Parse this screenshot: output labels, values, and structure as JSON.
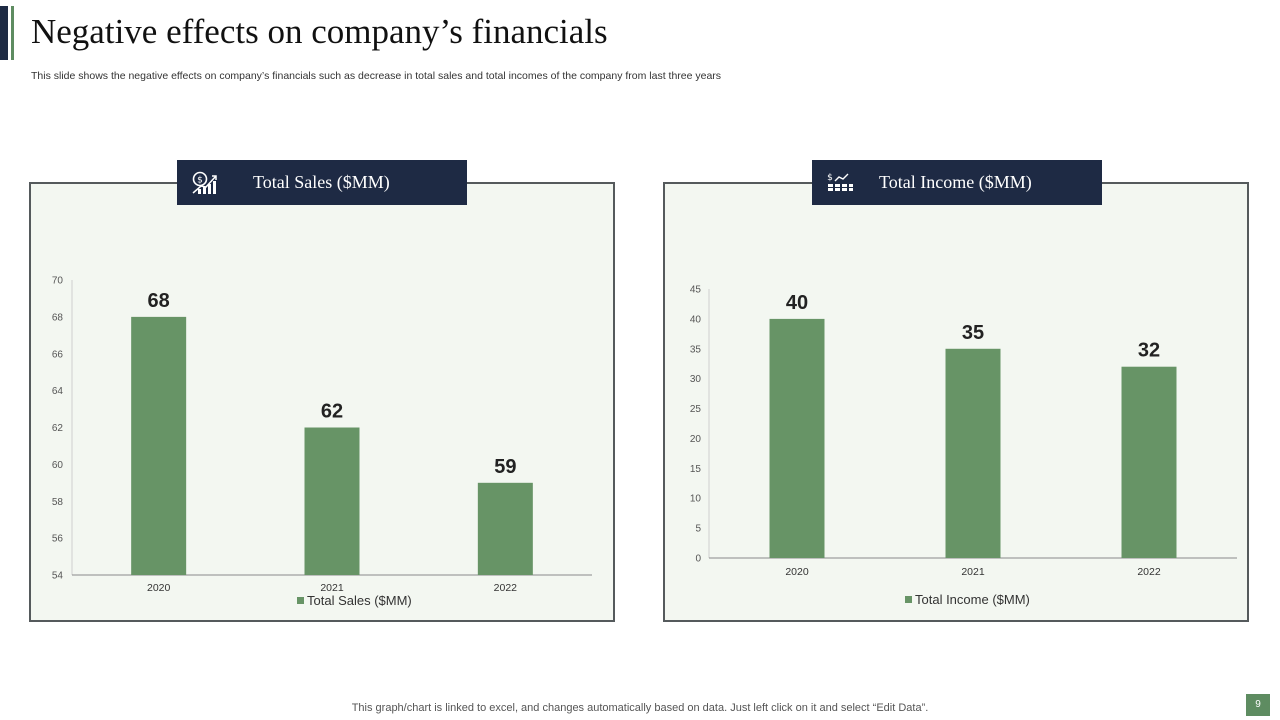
{
  "slide": {
    "title": "Negative effects on company’s financials",
    "subtitle": "This slide shows the negative effects on company’s financials such as decrease in total sales and total incomes of the company from last three years",
    "footer": "This graph/chart is linked to excel,  and changes automatically based on data. Just left click on it and select “Edit Data”.",
    "page_number": "9"
  },
  "panels": {
    "left": {
      "header": "Total Sales ($MM)",
      "icon": "sales-growth-icon"
    },
    "right": {
      "header": "Total Income ($MM)",
      "icon": "income-growth-icon"
    }
  },
  "colors": {
    "bar": "#679466",
    "navy": "#1e2a44",
    "panel_bg": "#f3f7f1"
  },
  "chart_data": [
    {
      "type": "bar",
      "title": "Total Sales ($MM)",
      "categories": [
        "2020",
        "2021",
        "2022"
      ],
      "series": [
        {
          "name": "Total Sales ($MM)",
          "values": [
            68,
            62,
            59
          ]
        }
      ],
      "ylim": [
        54,
        70
      ],
      "yticks": [
        54,
        56,
        58,
        60,
        62,
        64,
        66,
        68,
        70
      ],
      "legend": "bottom",
      "grid": false
    },
    {
      "type": "bar",
      "title": "Total Income ($MM)",
      "categories": [
        "2020",
        "2021",
        "2022"
      ],
      "series": [
        {
          "name": "Total Income ($MM)",
          "values": [
            40,
            35,
            32
          ]
        }
      ],
      "ylim": [
        0,
        45
      ],
      "yticks": [
        0,
        5,
        10,
        15,
        20,
        25,
        30,
        35,
        40,
        45
      ],
      "legend": "bottom",
      "grid": false
    }
  ]
}
